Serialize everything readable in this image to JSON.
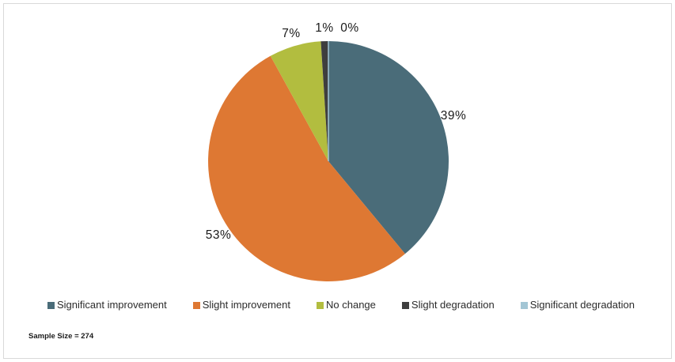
{
  "chart_data": {
    "type": "pie",
    "title": "",
    "categories": [
      "Significant improvement",
      "Slight improvement",
      "No change",
      "Slight degradation",
      "Significant degradation"
    ],
    "values": [
      39,
      53,
      7,
      1,
      0
    ],
    "data_labels": [
      "39%",
      "53%",
      "7%",
      "1%",
      "0%"
    ],
    "colors": [
      "#4A6C79",
      "#DE7833",
      "#B2BD3F",
      "#3E3E3E",
      "#A3C6D5"
    ],
    "start_angle_deg": 0,
    "direction": "clockwise",
    "legend_position": "bottom",
    "label_style": "outside-percent"
  },
  "footer": {
    "sample_size_note": "Sample Size = 274"
  },
  "frame": {
    "border_color": "#D9D9D9",
    "background": "#FFFFFF"
  }
}
